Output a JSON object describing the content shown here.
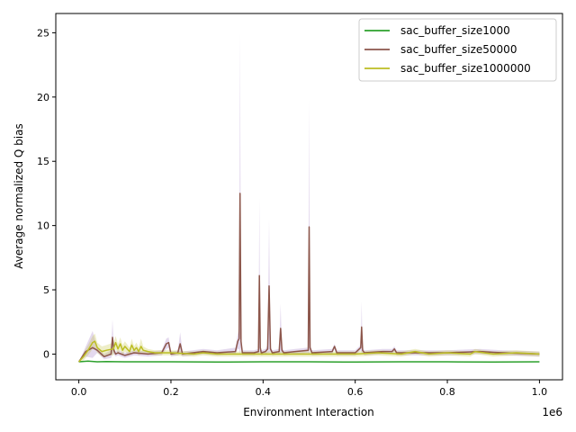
{
  "chart_data": {
    "type": "line",
    "xlabel": "Environment Interaction",
    "ylabel": "Average normalized Q bias",
    "x_offset_label": "1e6",
    "xlim": [
      -50000,
      1050000
    ],
    "ylim": [
      -2.0,
      26.5
    ],
    "x_ticks": [
      0.0,
      0.2,
      0.4,
      0.6,
      0.8,
      1.0
    ],
    "x_tick_labels": [
      "0.0",
      "0.2",
      "0.4",
      "0.6",
      "0.8",
      "1.0"
    ],
    "y_ticks": [
      0,
      5,
      10,
      15,
      20,
      25
    ],
    "y_tick_labels": [
      "0",
      "5",
      "10",
      "15",
      "20",
      "25"
    ],
    "grid": false,
    "legend_position": "top-right",
    "series": [
      {
        "name": "sac_buffer_size1000",
        "color": "#2ca02c",
        "band_color": "#2ca02c",
        "x": [
          0,
          20000,
          40000,
          60000,
          100000,
          200000,
          300000,
          400000,
          500000,
          600000,
          700000,
          800000,
          900000,
          1000000
        ],
        "y": [
          -0.6,
          -0.55,
          -0.6,
          -0.58,
          -0.6,
          -0.6,
          -0.62,
          -0.6,
          -0.6,
          -0.62,
          -0.6,
          -0.6,
          -0.62,
          -0.6
        ]
      },
      {
        "name": "sac_buffer_size50000",
        "color": "#8c564b",
        "band_color": "#9467bd",
        "x": [
          0,
          15000,
          30000,
          40000,
          55000,
          70000,
          73000,
          76000,
          80000,
          85000,
          100000,
          120000,
          150000,
          180000,
          190000,
          195000,
          200000,
          215000,
          220000,
          225000,
          270000,
          300000,
          340000,
          345000,
          348000,
          350000,
          352000,
          355000,
          380000,
          390000,
          392000,
          394000,
          396000,
          405000,
          410000,
          413000,
          416000,
          420000,
          435000,
          438000,
          441000,
          445000,
          470000,
          498000,
          500000,
          502000,
          506000,
          550000,
          555000,
          560000,
          600000,
          612000,
          614000,
          616000,
          620000,
          660000,
          680000,
          685000,
          690000,
          750000,
          800000,
          870000,
          920000,
          1000000
        ],
        "y": [
          -0.6,
          0.2,
          0.5,
          0.3,
          -0.2,
          0.0,
          1.3,
          0.3,
          0.0,
          0.1,
          -0.1,
          0.1,
          0.0,
          0.1,
          0.8,
          0.9,
          0.0,
          0.1,
          0.8,
          0.0,
          0.2,
          0.1,
          0.2,
          1.0,
          1.2,
          12.5,
          1.0,
          0.1,
          0.1,
          0.2,
          6.1,
          0.5,
          0.1,
          0.2,
          0.4,
          5.3,
          0.4,
          0.1,
          0.2,
          2.0,
          0.3,
          0.1,
          0.2,
          0.3,
          9.9,
          0.5,
          0.1,
          0.2,
          0.6,
          0.1,
          0.1,
          0.5,
          2.1,
          0.3,
          0.1,
          0.2,
          0.2,
          0.4,
          0.1,
          0.1,
          0.1,
          0.2,
          0.1,
          0.0
        ],
        "upper": [
          -0.6,
          0.6,
          1.8,
          0.5,
          0.0,
          0.3,
          2.7,
          0.5,
          0.2,
          0.3,
          0.1,
          0.3,
          0.2,
          0.3,
          1.2,
          1.3,
          0.2,
          0.3,
          1.7,
          0.2,
          0.4,
          0.3,
          0.5,
          1.6,
          2.0,
          25.0,
          1.5,
          0.3,
          0.3,
          0.4,
          12.1,
          0.8,
          0.3,
          0.4,
          0.7,
          10.5,
          0.6,
          0.3,
          0.4,
          3.9,
          0.5,
          0.3,
          0.4,
          0.5,
          19.8,
          0.7,
          0.3,
          0.4,
          0.8,
          0.3,
          0.3,
          0.7,
          4.1,
          0.5,
          0.3,
          0.4,
          0.4,
          0.6,
          0.3,
          0.3,
          0.3,
          0.4,
          0.3,
          0.2
        ],
        "lower": [
          -0.6,
          -0.2,
          -0.3,
          0.1,
          -0.4,
          -0.3,
          0.0,
          0.0,
          -0.2,
          -0.1,
          -0.3,
          -0.1,
          -0.2,
          -0.1,
          0.4,
          0.5,
          -0.2,
          -0.1,
          0.0,
          -0.2,
          0.0,
          -0.1,
          0.0,
          0.4,
          0.4,
          0.0,
          0.5,
          -0.1,
          -0.1,
          0.0,
          0.1,
          0.2,
          -0.1,
          0.0,
          0.1,
          0.1,
          0.2,
          -0.1,
          0.0,
          0.1,
          0.1,
          -0.1,
          0.0,
          0.1,
          0.0,
          0.3,
          -0.1,
          0.0,
          0.4,
          -0.1,
          -0.1,
          0.3,
          0.1,
          0.1,
          -0.1,
          0.0,
          0.0,
          0.2,
          -0.1,
          -0.1,
          -0.1,
          0.0,
          -0.1,
          -0.2
        ]
      },
      {
        "name": "sac_buffer_size1000000",
        "color": "#bcbd22",
        "band_color": "#bcbd22",
        "x": [
          0,
          10000,
          20000,
          30000,
          35000,
          40000,
          50000,
          60000,
          75000,
          80000,
          85000,
          90000,
          95000,
          100000,
          110000,
          115000,
          120000,
          125000,
          130000,
          135000,
          140000,
          150000,
          165000,
          200000,
          250000,
          270000,
          300000,
          350000,
          400000,
          450000,
          500000,
          550000,
          600000,
          650000,
          700000,
          730000,
          760000,
          800000,
          850000,
          860000,
          900000,
          950000,
          1000000
        ],
        "y": [
          -0.6,
          -0.2,
          0.3,
          0.9,
          1.0,
          0.5,
          0.2,
          0.3,
          0.4,
          0.9,
          0.4,
          0.8,
          0.3,
          0.6,
          0.2,
          0.7,
          0.3,
          0.5,
          0.2,
          0.6,
          0.3,
          0.2,
          0.1,
          0.1,
          0.0,
          0.1,
          0.0,
          0.0,
          0.0,
          0.0,
          0.0,
          0.0,
          0.0,
          0.1,
          0.0,
          0.2,
          0.0,
          0.1,
          0.0,
          0.2,
          0.0,
          0.1,
          0.0
        ],
        "upper": [
          -0.6,
          0.1,
          0.7,
          1.4,
          1.6,
          0.9,
          0.6,
          0.7,
          0.9,
          1.4,
          0.8,
          1.3,
          0.7,
          1.0,
          0.5,
          1.2,
          0.6,
          0.9,
          0.5,
          1.2,
          0.6,
          0.4,
          0.3,
          0.3,
          0.2,
          0.3,
          0.2,
          0.2,
          0.2,
          0.2,
          0.2,
          0.2,
          0.2,
          0.3,
          0.2,
          0.4,
          0.2,
          0.3,
          0.2,
          0.4,
          0.2,
          0.3,
          0.2
        ],
        "lower": [
          -0.6,
          -0.5,
          -0.1,
          0.4,
          0.4,
          0.1,
          -0.2,
          -0.1,
          -0.1,
          0.4,
          0.0,
          0.3,
          -0.1,
          0.2,
          -0.1,
          0.2,
          0.0,
          0.1,
          -0.1,
          0.0,
          0.0,
          0.0,
          -0.1,
          -0.1,
          -0.2,
          -0.1,
          -0.2,
          -0.2,
          -0.2,
          -0.2,
          -0.2,
          -0.2,
          -0.2,
          -0.1,
          -0.2,
          0.0,
          -0.2,
          -0.1,
          -0.2,
          0.0,
          -0.2,
          -0.1,
          -0.2
        ]
      }
    ]
  }
}
